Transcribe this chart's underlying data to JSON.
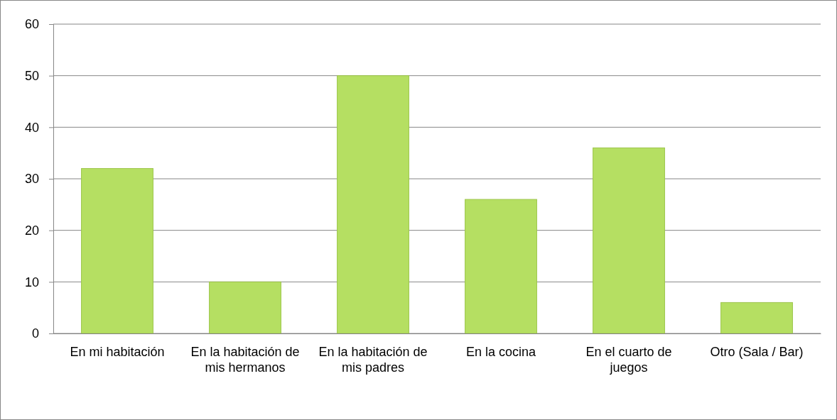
{
  "chart_data": {
    "type": "bar",
    "categories": [
      "En mi habitación",
      "En la habitación de mis hermanos",
      "En la habitación de mis padres",
      "En la cocina",
      "En el cuarto de juegos",
      "Otro (Sala / Bar)"
    ],
    "values": [
      32,
      10,
      50,
      26,
      36,
      6
    ],
    "color": "#b5df62",
    "ylim": [
      0,
      60
    ],
    "yticks": [
      0,
      10,
      20,
      30,
      40,
      50,
      60
    ],
    "grid": "y"
  }
}
